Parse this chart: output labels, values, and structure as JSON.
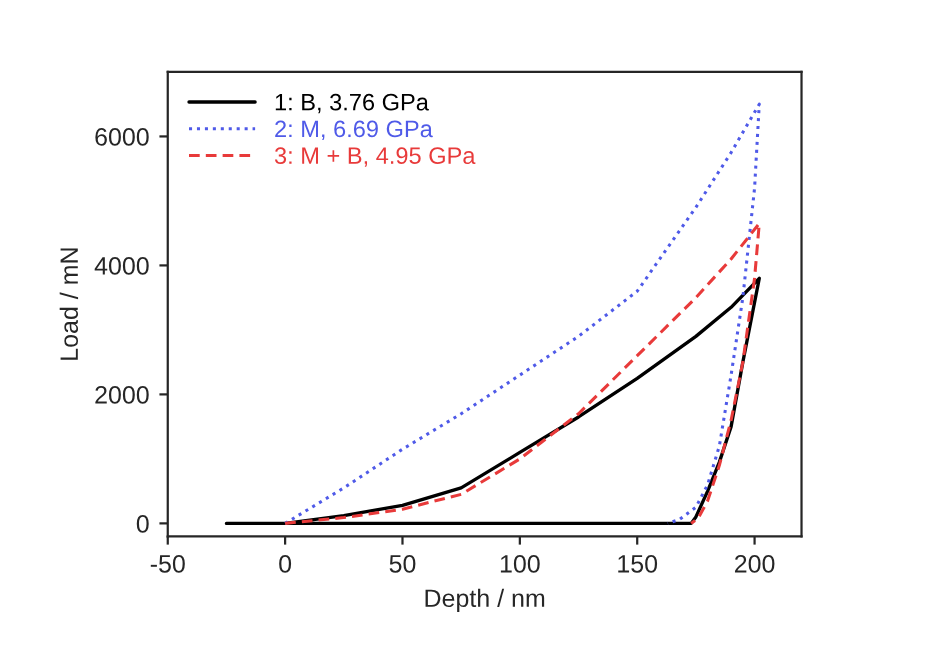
{
  "chart_data": {
    "type": "line",
    "xlabel": "Depth / nm",
    "ylabel": "Load / mN",
    "xlim": [
      -50,
      220
    ],
    "ylim": [
      -200,
      7000
    ],
    "xticks": [
      -50,
      0,
      50,
      100,
      150,
      200
    ],
    "yticks": [
      0,
      2000,
      4000,
      6000
    ],
    "grid": false,
    "legend": "top left",
    "marker": "none",
    "series": [
      {
        "name": "1: B, 3.76 GPa",
        "color": "#000000",
        "line_style": "solid",
        "x": [
          0,
          25,
          50,
          75,
          100,
          125,
          150,
          175,
          190,
          202,
          195,
          190,
          185,
          180,
          175,
          173,
          150,
          100,
          50,
          0,
          -25
        ],
        "values": [
          0,
          120,
          280,
          550,
          1100,
          1650,
          2250,
          2900,
          3350,
          3800,
          2500,
          1500,
          950,
          500,
          100,
          0,
          0,
          0,
          0,
          0,
          0
        ]
      },
      {
        "name": "2: M, 6.69 GPa",
        "color": "#4f5ae8",
        "line_style": "dotted",
        "x": [
          0,
          25,
          50,
          75,
          100,
          125,
          150,
          175,
          190,
          202,
          200,
          195,
          190,
          185,
          180,
          175,
          168,
          163
        ],
        "values": [
          0,
          550,
          1150,
          1700,
          2300,
          2900,
          3600,
          4900,
          5750,
          6500,
          5200,
          3500,
          2300,
          1200,
          600,
          250,
          60,
          0
        ]
      },
      {
        "name": "3: M + B, 4.95 GPa",
        "color": "#e83a3a",
        "line_style": "dashed",
        "x": [
          0,
          25,
          50,
          75,
          100,
          125,
          150,
          175,
          190,
          202,
          200,
          195,
          190,
          185,
          180,
          176,
          173
        ],
        "values": [
          0,
          90,
          220,
          450,
          1000,
          1700,
          2600,
          3500,
          4100,
          4650,
          3800,
          2500,
          1600,
          900,
          350,
          80,
          0
        ]
      }
    ]
  }
}
